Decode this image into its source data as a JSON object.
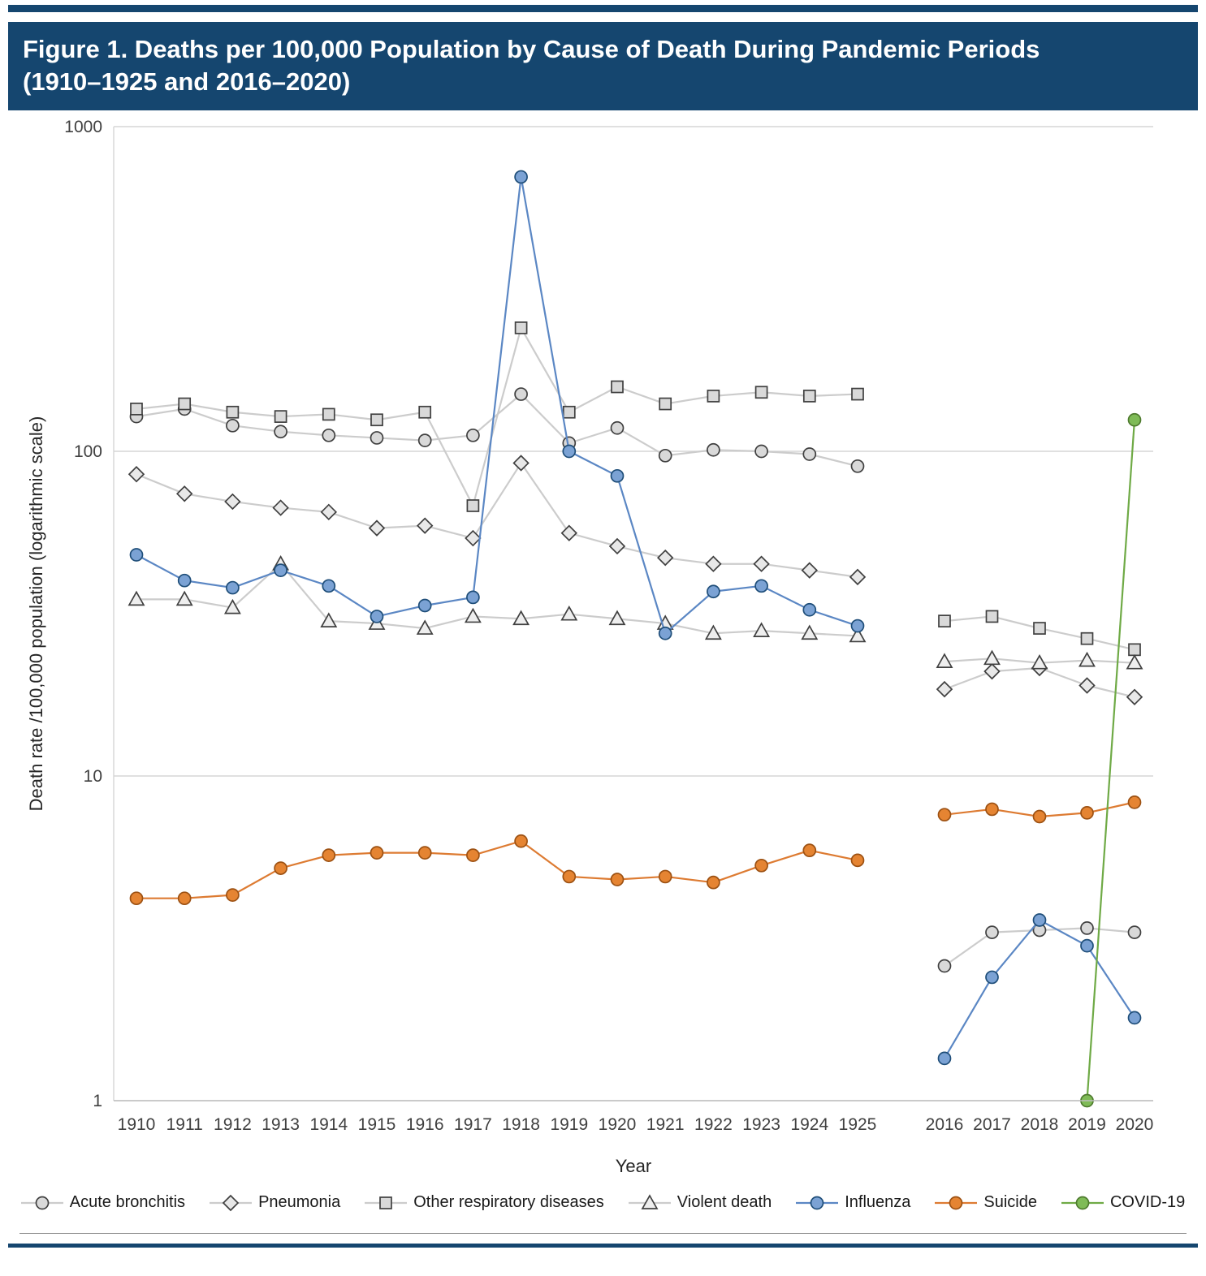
{
  "header": {
    "title_line1": "Figure 1. Deaths per 100,000 Population by Cause of Death During Pandemic Periods",
    "title_line2": "(1910–1925 and 2016–2020)"
  },
  "chart_data": {
    "type": "line",
    "title": "Deaths per 100,000 Population by Cause of Death During Pandemic Periods (1910–1925 and 2016–2020)",
    "xlabel": "Year",
    "ylabel": "Death rate /100,000 population (logarithmic scale)",
    "yscale": "logarithmic",
    "ylim": [
      1,
      1000
    ],
    "yticks": [
      "1",
      "10",
      "100",
      "1000"
    ],
    "grid": "horizontal",
    "legend_position": "bottom",
    "x_group1": [
      "1910",
      "1911",
      "1912",
      "1913",
      "1914",
      "1915",
      "1916",
      "1917",
      "1918",
      "1919",
      "1920",
      "1921",
      "1922",
      "1923",
      "1924",
      "1925"
    ],
    "x_group2": [
      "2016",
      "2017",
      "2018",
      "2019",
      "2020"
    ],
    "series": [
      {
        "name": "Acute bronchitis",
        "marker": "circle",
        "line_color": "#cccccc",
        "marker_fill": "#d9d9d9",
        "marker_stroke": "#404040",
        "values_1910_1925": [
          128,
          135,
          120,
          115,
          112,
          110,
          108,
          112,
          150,
          106,
          118,
          97,
          101,
          100,
          98,
          90
        ],
        "values_2016_2020": [
          2.6,
          3.3,
          3.35,
          3.4,
          3.3
        ]
      },
      {
        "name": "Pneumonia",
        "marker": "diamond",
        "line_color": "#cccccc",
        "marker_fill": "#e8e8e8",
        "marker_stroke": "#404040",
        "values_1910_1925": [
          85,
          74,
          70,
          67,
          65,
          58,
          59,
          54,
          92,
          56,
          51,
          47,
          45,
          45,
          43,
          41
        ],
        "values_2016_2020": [
          18.5,
          21,
          21.5,
          19,
          17.5
        ]
      },
      {
        "name": "Other respiratory diseases",
        "marker": "square",
        "line_color": "#cccccc",
        "marker_fill": "#d9d9d9",
        "marker_stroke": "#404040",
        "values_1910_1925": [
          135,
          140,
          132,
          128,
          130,
          125,
          132,
          68,
          240,
          132,
          158,
          140,
          148,
          152,
          148,
          150
        ],
        "values_2016_2020": [
          30,
          31,
          28.5,
          26.5,
          24.5
        ]
      },
      {
        "name": "Violent death",
        "marker": "triangle",
        "line_color": "#cccccc",
        "marker_fill": "#eeeeee",
        "marker_stroke": "#404040",
        "values_1910_1925": [
          35,
          35,
          33,
          45,
          30,
          29.5,
          28.5,
          31,
          30.5,
          31.5,
          30.5,
          29.5,
          27.5,
          28,
          27.5,
          27
        ],
        "values_2016_2020": [
          22.5,
          23,
          22.3,
          22.7,
          22.3
        ]
      },
      {
        "name": "Influenza",
        "marker": "circle",
        "line_color": "#5b87c4",
        "marker_fill": "#7ba2d4",
        "marker_stroke": "#1f4e79",
        "values_1910_1925": [
          48,
          40,
          38,
          43,
          38.5,
          31,
          33.5,
          35.5,
          700,
          100,
          84,
          27.5,
          37,
          38.5,
          32.5,
          29
        ],
        "values_2016_2020": [
          1.35,
          2.4,
          3.6,
          3.0,
          1.8
        ]
      },
      {
        "name": "Suicide",
        "marker": "circle",
        "line_color": "#dd7b32",
        "marker_fill": "#e58432",
        "marker_stroke": "#9c5113",
        "values_1910_1925": [
          4.2,
          4.2,
          4.3,
          5.2,
          5.7,
          5.8,
          5.8,
          5.7,
          6.3,
          4.9,
          4.8,
          4.9,
          4.7,
          5.3,
          5.9,
          5.5
        ],
        "values_2016_2020": [
          7.6,
          7.9,
          7.5,
          7.7,
          8.3
        ]
      },
      {
        "name": "COVID-19",
        "marker": "circle",
        "line_color": "#6faa46",
        "marker_fill": "#7fbb57",
        "marker_stroke": "#4e7a2e",
        "values_1910_1925": [
          null,
          null,
          null,
          null,
          null,
          null,
          null,
          null,
          null,
          null,
          null,
          null,
          null,
          null,
          null,
          null
        ],
        "values_2016_2020": [
          null,
          null,
          null,
          1.0,
          125
        ]
      }
    ]
  }
}
